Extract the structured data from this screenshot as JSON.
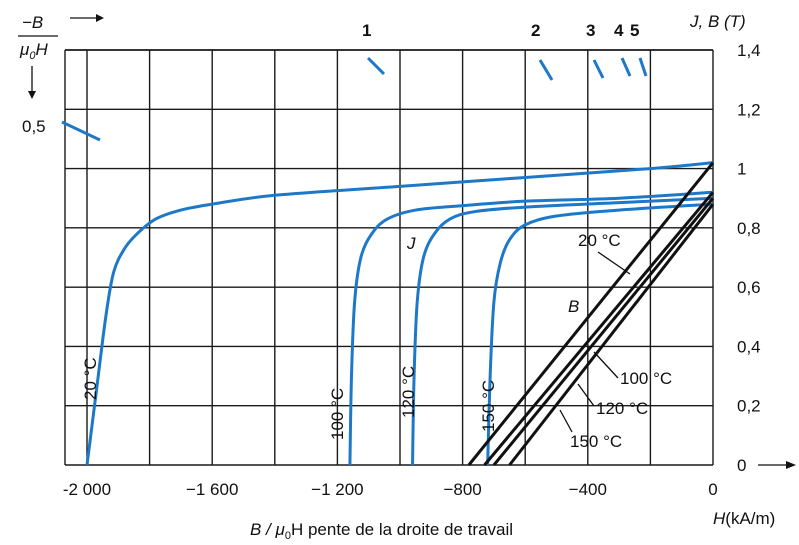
{
  "chart_data": {
    "type": "line",
    "x_axis": {
      "label_main": "H",
      "label_unit": "(kA/m)",
      "range": [
        -2000,
        0
      ],
      "tick_values": [
        -2000,
        -1600,
        -1200,
        -800,
        -400,
        0
      ],
      "tick_labels": [
        "-2 000",
        "−1 600",
        "−1 200",
        "−800",
        "−400",
        "0"
      ],
      "bottom_caption_ratio": "B / μ",
      "bottom_caption_sub": "0",
      "bottom_caption_rest": "H pente de la droite de travail"
    },
    "y_axis": {
      "label": "J, B (T)",
      "range": [
        0,
        1.4
      ],
      "tick_values": [
        0,
        0.2,
        0.4,
        0.6,
        0.8,
        1.0,
        1.2,
        1.4
      ],
      "tick_labels": [
        "0",
        "0,2",
        "0,4",
        "0,6",
        "0,8",
        "1",
        "1,2",
        "1,4"
      ]
    },
    "slope_axis": {
      "label_numerator": "−B",
      "label_denominator": "μ",
      "label_denominator_sub": "0",
      "label_denominator_rest": "H",
      "value_label": "0,5",
      "marker_labels": [
        "1",
        "2",
        "3",
        "4",
        "5"
      ]
    },
    "series": [
      {
        "name": "J 20 °C",
        "kind": "J",
        "temperature_label": "20 °C",
        "points": [
          [
            -2000,
            0
          ],
          [
            -1970,
            0.25
          ],
          [
            -1940,
            0.5
          ],
          [
            -1915,
            0.65
          ],
          [
            -1880,
            0.73
          ],
          [
            -1840,
            0.78
          ],
          [
            -1780,
            0.83
          ],
          [
            -1700,
            0.86
          ],
          [
            -1600,
            0.88
          ],
          [
            -1400,
            0.91
          ],
          [
            -1000,
            0.94
          ],
          [
            -600,
            0.97
          ],
          [
            -200,
            1.0
          ],
          [
            0,
            1.02
          ]
        ]
      },
      {
        "name": "J 100 °C",
        "kind": "J",
        "temperature_label": "100 °C",
        "points": [
          [
            -1160,
            0
          ],
          [
            -1155,
            0.3
          ],
          [
            -1145,
            0.55
          ],
          [
            -1125,
            0.7
          ],
          [
            -1090,
            0.78
          ],
          [
            -1040,
            0.83
          ],
          [
            -950,
            0.86
          ],
          [
            -800,
            0.875
          ],
          [
            -600,
            0.89
          ],
          [
            -300,
            0.9
          ],
          [
            0,
            0.92
          ]
        ]
      },
      {
        "name": "J 120 °C",
        "kind": "J",
        "temperature_label": "120 °C",
        "points": [
          [
            -960,
            0
          ],
          [
            -955,
            0.3
          ],
          [
            -945,
            0.55
          ],
          [
            -925,
            0.7
          ],
          [
            -890,
            0.78
          ],
          [
            -840,
            0.83
          ],
          [
            -760,
            0.855
          ],
          [
            -600,
            0.87
          ],
          [
            -300,
            0.885
          ],
          [
            0,
            0.9
          ]
        ]
      },
      {
        "name": "J 150 °C",
        "kind": "J",
        "temperature_label": "150 °C",
        "points": [
          [
            -720,
            0
          ],
          [
            -712,
            0.3
          ],
          [
            -700,
            0.55
          ],
          [
            -680,
            0.68
          ],
          [
            -650,
            0.76
          ],
          [
            -600,
            0.81
          ],
          [
            -500,
            0.84
          ],
          [
            -300,
            0.86
          ],
          [
            0,
            0.88
          ]
        ]
      },
      {
        "name": "B 20 °C",
        "kind": "B",
        "temperature_label": "20 °C",
        "points": [
          [
            -780,
            0
          ],
          [
            0,
            1.02
          ]
        ]
      },
      {
        "name": "B 100 °C",
        "kind": "B",
        "temperature_label": "100 °C",
        "points": [
          [
            -730,
            0
          ],
          [
            0,
            0.92
          ]
        ]
      },
      {
        "name": "B 120 °C",
        "kind": "B",
        "temperature_label": "120 °C",
        "points": [
          [
            -700,
            0
          ],
          [
            0,
            0.9
          ]
        ]
      },
      {
        "name": "B 150 °C",
        "kind": "B",
        "temperature_label": "150 °C",
        "points": [
          [
            -650,
            0
          ],
          [
            0,
            0.88
          ]
        ]
      }
    ],
    "curve_labels": {
      "J": "J",
      "B": "B"
    },
    "grid": true
  }
}
